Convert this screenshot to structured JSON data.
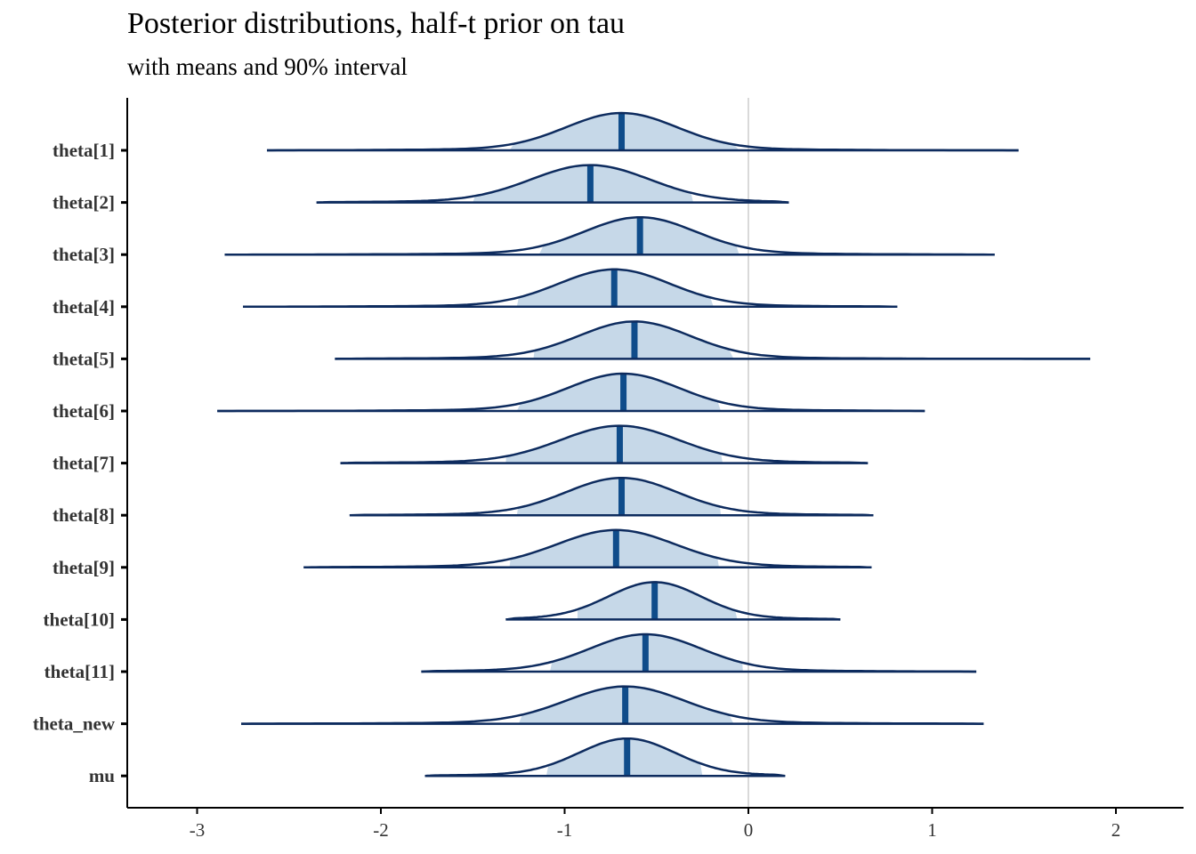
{
  "chart_data": {
    "type": "area",
    "title": "Posterior distributions, half-t prior on tau",
    "subtitle": "with means and 90% interval",
    "xlabel": "",
    "ylabel": "",
    "xlim": [
      -3.4,
      2.4
    ],
    "xticks": [
      -3,
      -2,
      -1,
      0,
      1,
      2
    ],
    "grid": false,
    "reference_line_x": 0,
    "colors": {
      "outline": "#0d2b5e",
      "interval_fill": "#c6d8e8",
      "mean_line": "#0f4c8a",
      "reference_line": "#d9d9d9",
      "axis": "#000000"
    },
    "series": [
      {
        "name": "theta[1]",
        "min": -2.62,
        "max": 1.47,
        "mean": -0.69,
        "q05": -1.3,
        "q95": -0.05,
        "sd": 0.3
      },
      {
        "name": "theta[2]",
        "min": -2.35,
        "max": 0.22,
        "mean": -0.86,
        "q05": -1.5,
        "q95": -0.3,
        "sd": 0.32
      },
      {
        "name": "theta[3]",
        "min": -2.85,
        "max": 1.34,
        "mean": -0.59,
        "q05": -1.14,
        "q95": -0.05,
        "sd": 0.3
      },
      {
        "name": "theta[4]",
        "min": -2.75,
        "max": 0.81,
        "mean": -0.73,
        "q05": -1.26,
        "q95": -0.19,
        "sd": 0.3
      },
      {
        "name": "theta[5]",
        "min": -2.25,
        "max": 1.86,
        "mean": -0.62,
        "q05": -1.17,
        "q95": -0.08,
        "sd": 0.3
      },
      {
        "name": "theta[6]",
        "min": -2.89,
        "max": 0.96,
        "mean": -0.68,
        "q05": -1.26,
        "q95": -0.15,
        "sd": 0.3
      },
      {
        "name": "theta[7]",
        "min": -2.22,
        "max": 0.65,
        "mean": -0.7,
        "q05": -1.32,
        "q95": -0.14,
        "sd": 0.32
      },
      {
        "name": "theta[8]",
        "min": -2.17,
        "max": 0.68,
        "mean": -0.69,
        "q05": -1.26,
        "q95": -0.15,
        "sd": 0.3
      },
      {
        "name": "theta[9]",
        "min": -2.42,
        "max": 0.67,
        "mean": -0.72,
        "q05": -1.3,
        "q95": -0.16,
        "sd": 0.32
      },
      {
        "name": "theta[10]",
        "min": -1.32,
        "max": 0.5,
        "mean": -0.51,
        "q05": -0.93,
        "q95": -0.06,
        "sd": 0.25
      },
      {
        "name": "theta[11]",
        "min": -1.78,
        "max": 1.24,
        "mean": -0.56,
        "q05": -1.08,
        "q95": -0.03,
        "sd": 0.3
      },
      {
        "name": "theta_new",
        "min": -2.76,
        "max": 1.28,
        "mean": -0.67,
        "q05": -1.25,
        "q95": -0.08,
        "sd": 0.32
      },
      {
        "name": "mu",
        "min": -1.76,
        "max": 0.2,
        "mean": -0.66,
        "q05": -1.1,
        "q95": -0.25,
        "sd": 0.26
      }
    ]
  }
}
